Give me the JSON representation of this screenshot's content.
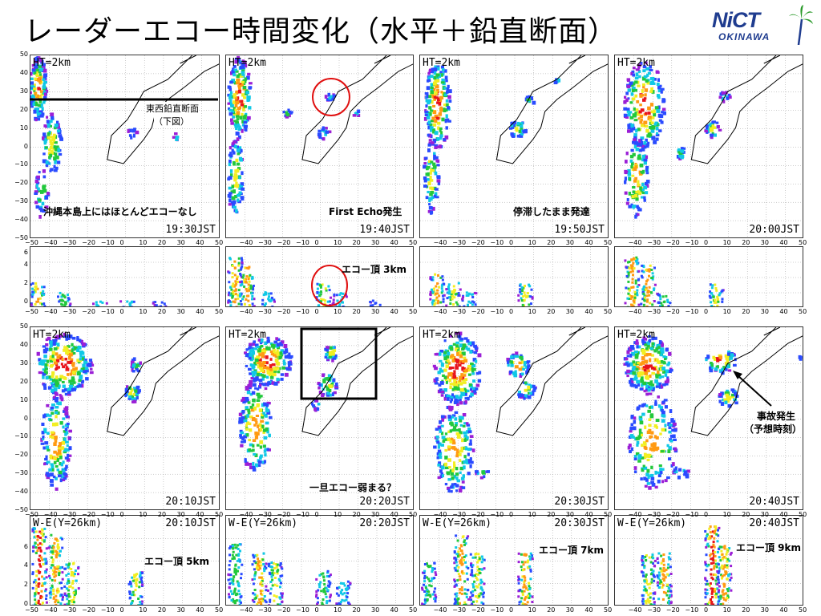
{
  "title": "レーダーエコー時間変化（水平＋鉛直断面）",
  "logo": {
    "main": "NiCT",
    "sub": "OKINAWA",
    "icon": "palm-tree-icon"
  },
  "colors": {
    "purple": "#9b1fd6",
    "blue": "#2a4bff",
    "cyan": "#10c8e6",
    "green": "#22c83c",
    "yellow": "#f2ee22",
    "orange": "#ff9a12",
    "red": "#e8141c"
  },
  "panel_label_ht": "HT=2km",
  "row1_times": [
    "19:30JST",
    "19:40JST",
    "19:50JST",
    "20:00JST"
  ],
  "row3_times": [
    "20:10JST",
    "20:20JST",
    "20:30JST",
    "20:40JST"
  ],
  "row4_label": "W-E(Y=26km)",
  "row4_times": [
    "20:10JST",
    "20:20JST",
    "20:30JST",
    "20:40JST"
  ],
  "y_ticks_horizontal": [
    "50",
    "40",
    "30",
    "20",
    "10",
    "0",
    "−10",
    "−20",
    "−30",
    "−40",
    "−50"
  ],
  "y_ticks_vertical": [
    "6",
    "4",
    "2",
    "0"
  ],
  "x_ticks": [
    "−50",
    "−40",
    "−30",
    "−20",
    "−10",
    "0",
    "10",
    "20",
    "30",
    "40",
    "50"
  ],
  "annotations": {
    "section_line": "東西鉛直断面",
    "section_line_sub": "（下図）",
    "no_echo": "沖縄本島上にはほとんどエコーなし",
    "first_echo": "First Echo発生",
    "stagnant": "停滞したまま発達",
    "echo_top_3": "エコー頂 3km",
    "weaken": "一旦エコー弱まる？",
    "accident": "事故発生",
    "accident_sub": "（予想時刻）",
    "echo_top_5": "エコー頂 5km",
    "echo_top_7": "エコー頂 7km",
    "echo_top_9": "エコー頂 9km"
  }
}
